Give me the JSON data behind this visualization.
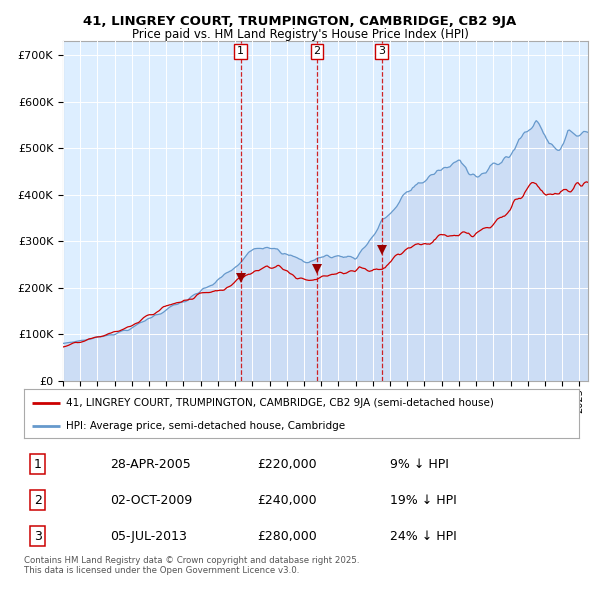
{
  "title_line1": "41, LINGREY COURT, TRUMPINGTON, CAMBRIDGE, CB2 9JA",
  "title_line2": "Price paid vs. HM Land Registry's House Price Index (HPI)",
  "plot_bg_color": "#ddeeff",
  "hpi_color": "#6699cc",
  "hpi_fill_color": "#ccddf5",
  "price_color": "#cc0000",
  "marker_color": "#990000",
  "vline_color": "#cc0000",
  "sale_dates": [
    2005.32,
    2009.75,
    2013.51
  ],
  "sale_prices": [
    220000,
    240000,
    280000
  ],
  "sale_labels": [
    "1",
    "2",
    "3"
  ],
  "legend_label_price": "41, LINGREY COURT, TRUMPINGTON, CAMBRIDGE, CB2 9JA (semi-detached house)",
  "legend_label_hpi": "HPI: Average price, semi-detached house, Cambridge",
  "table_rows": [
    [
      "1",
      "28-APR-2005",
      "£220,000",
      "9% ↓ HPI"
    ],
    [
      "2",
      "02-OCT-2009",
      "£240,000",
      "19% ↓ HPI"
    ],
    [
      "3",
      "05-JUL-2013",
      "£280,000",
      "24% ↓ HPI"
    ]
  ],
  "footnote": "Contains HM Land Registry data © Crown copyright and database right 2025.\nThis data is licensed under the Open Government Licence v3.0.",
  "ylim": [
    0,
    730000
  ],
  "xlim_start": 1995.0,
  "xlim_end": 2025.5,
  "yticks": [
    0,
    100000,
    200000,
    300000,
    400000,
    500000,
    600000,
    700000
  ],
  "ytick_labels": [
    "£0",
    "£100K",
    "£200K",
    "£300K",
    "£400K",
    "£500K",
    "£600K",
    "£700K"
  ]
}
